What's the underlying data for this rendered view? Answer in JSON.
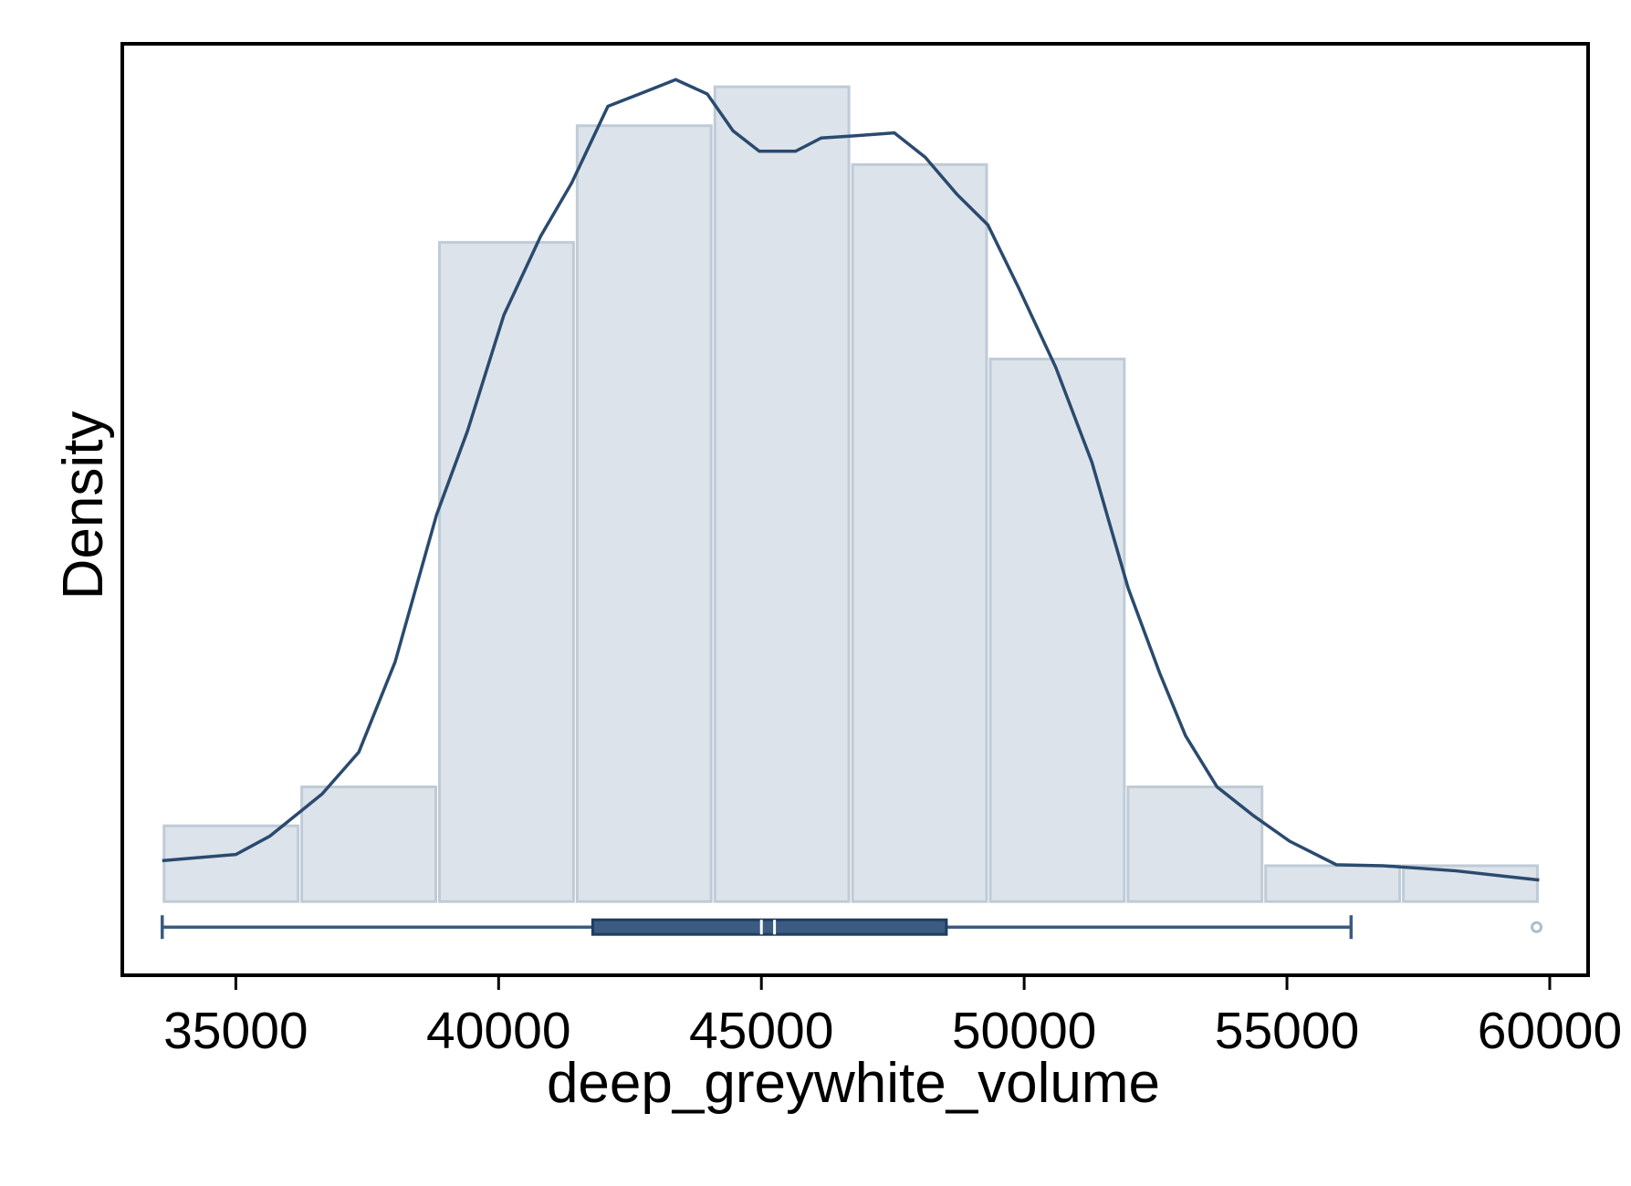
{
  "chart_data": {
    "type": "histogram",
    "x_label": "deep_greywhite_volume",
    "y_label": "Density",
    "bins": [
      33600,
      36220,
      38840,
      41460,
      44080,
      46700,
      49320,
      51940,
      54560,
      57180,
      59800
    ],
    "values": [
      7.4e-06,
      1.12e-05,
      6.44e-05,
      7.58e-05,
      7.96e-05,
      7.2e-05,
      5.3e-05,
      1.12e-05,
      3.5e-06,
      3.5e-06
    ],
    "color": "#dce3ea",
    "edge_color": "#bfcbd7",
    "kde": {
      "color": "#2a4a6e",
      "x": [
        33600,
        35000,
        35650,
        36640,
        37340,
        38030,
        38820,
        39410,
        40100,
        40800,
        41390,
        42080,
        42780,
        43370,
        43970,
        44460,
        44960,
        45650,
        46140,
        46740,
        47530,
        48120,
        48720,
        49310,
        49900,
        50600,
        51290,
        51980,
        52580,
        53070,
        53670,
        54360,
        55050,
        55940,
        56830,
        58220,
        59800
      ],
      "values": [
        4e-06,
        4.6e-06,
        6.4e-06,
        1.05e-05,
        1.46e-05,
        2.34e-05,
        3.78e-05,
        4.6e-05,
        5.73e-05,
        6.5e-05,
        7.02e-05,
        7.77e-05,
        7.91e-05,
        8.03e-05,
        7.89e-05,
        7.53e-05,
        7.33e-05,
        7.33e-05,
        7.46e-05,
        7.48e-05,
        7.51e-05,
        7.27e-05,
        6.91e-05,
        6.61e-05,
        5.99e-05,
        5.22e-05,
        4.29e-05,
        3.06e-05,
        2.23e-05,
        1.62e-05,
        1.12e-05,
        8.4e-06,
        5.9e-06,
        3.6e-06,
        3.5e-06,
        3e-06,
        2.1e-06
      ]
    },
    "boxplot": {
      "color": "#3b5b80",
      "min": 33600,
      "q1": 41790,
      "median": 45000,
      "mean": 45250,
      "q3": 48520,
      "max": 56220,
      "outliers": [
        59750
      ]
    },
    "xlim": [
      32840,
      60730
    ],
    "ylim": [
      -7.2e-06,
      8.38e-05
    ],
    "xticks": [
      35000,
      40000,
      45000,
      50000,
      55000,
      60000
    ]
  }
}
